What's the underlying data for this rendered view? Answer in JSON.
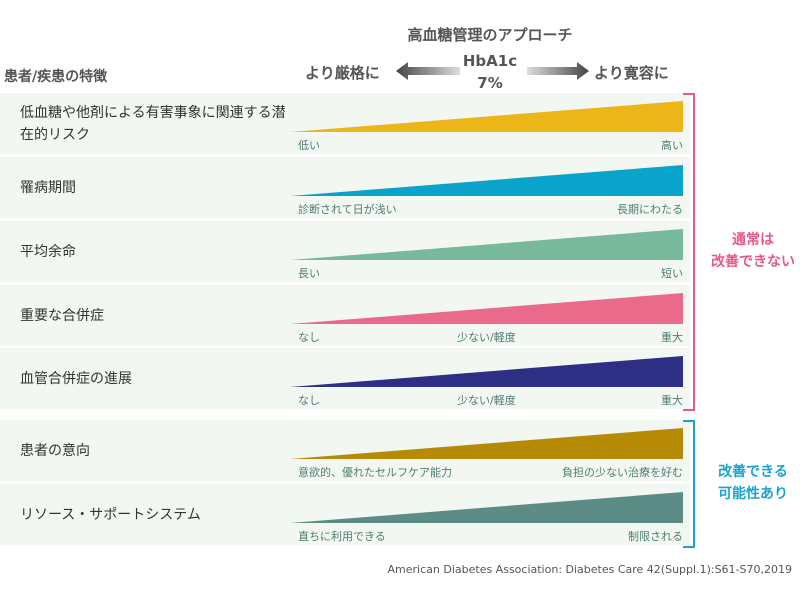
{
  "title": "高血糖管理のアプローチ",
  "header": "患者/疾患の特徴",
  "axis": {
    "strict": "より厳格に",
    "lenient": "より寛容に",
    "hba1c": "HbA1c",
    "target": "7%"
  },
  "rows": [
    {
      "label": "低血糖や他剤による有害事象に関連する潜在的リスク",
      "color": "#ecb619",
      "left": "低い",
      "mid": "",
      "right": "高い"
    },
    {
      "label": "罹病期間",
      "color": "#0aa3c9",
      "left": "診断されて日が浅い",
      "mid": "",
      "right": "長期にわたる"
    },
    {
      "label": "平均余命",
      "color": "#78b89b",
      "left": "長い",
      "mid": "",
      "right": "短い"
    },
    {
      "label": "重要な合併症",
      "color": "#ea6a8c",
      "left": "なし",
      "mid": "少ない/軽度",
      "right": "重大"
    },
    {
      "label": "血管合併症の進展",
      "color": "#2d2f85",
      "left": "なし",
      "mid": "少ない/軽度",
      "right": "重大"
    },
    {
      "label": "患者の意向",
      "color": "#b78a05",
      "left": "意欲的、優れたセルフケア能力",
      "mid": "",
      "right": "負担の少ない治療を好む"
    },
    {
      "label": "リソース・サポートシステム",
      "color": "#5c8c86",
      "left": "直ちに利用できる",
      "mid": "",
      "right": "制限される"
    }
  ],
  "groups": {
    "fixed": {
      "text1": "通常は",
      "text2": "改善できない",
      "color": "#e8588a"
    },
    "modifiable": {
      "text1": "改善できる",
      "text2": "可能性あり",
      "color": "#1ba3d0"
    }
  },
  "citation": "American Diabetes Association: Diabetes Care 42(Suppl.1):S61-S70,2019"
}
